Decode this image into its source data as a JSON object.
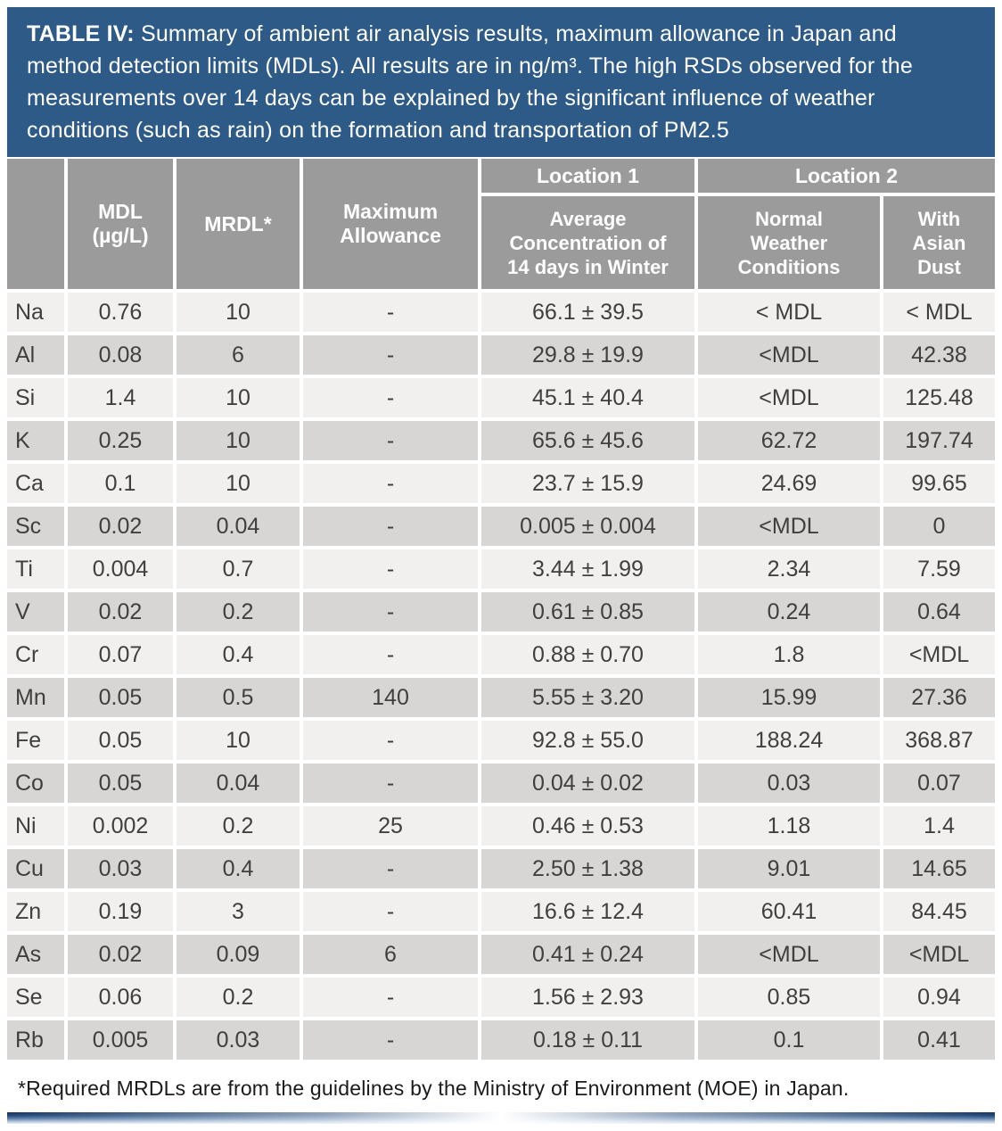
{
  "colors": {
    "title_bg": "#2d5a87",
    "title_text": "#ffffff",
    "header_bg": "#9b9b9b",
    "header_text": "#ffffff",
    "row_light": "#f1f0ee",
    "row_dark": "#d8d6d4",
    "cell_text": "#3f3f3f",
    "footnote_text": "#1a1a1a"
  },
  "title": {
    "label": "TABLE IV:",
    "text": "Summary of ambient air analysis results, maximum allowance in Japan and method detection limits (MDLs). All results are in ng/m³. The high RSDs observed for the measurements over 14 days can be explained by the significant influence of weather conditions (such as rain) on the formation and transportation of PM2.5"
  },
  "table": {
    "headers": {
      "element": "",
      "mdl": "MDL\n(µg/L)",
      "mrdl": "MRDL*",
      "max_allowance": "Maximum\nAllowance",
      "location1": "Location 1",
      "location2": "Location 2",
      "avg_concentration": "Average\nConcentration of\n14 days in Winter",
      "normal_weather": "Normal\nWeather\nConditions",
      "asian_dust": "With\nAsian\nDust"
    },
    "rows": [
      {
        "element": "Na",
        "mdl": "0.76",
        "mrdl": "10",
        "max_allowance": "-",
        "avg_concentration": "66.1 ± 39.5",
        "normal_weather": "< MDL",
        "asian_dust": "< MDL"
      },
      {
        "element": "Al",
        "mdl": "0.08",
        "mrdl": "6",
        "max_allowance": "-",
        "avg_concentration": "29.8 ± 19.9",
        "normal_weather": "<MDL",
        "asian_dust": "42.38"
      },
      {
        "element": "Si",
        "mdl": "1.4",
        "mrdl": "10",
        "max_allowance": "-",
        "avg_concentration": "45.1 ± 40.4",
        "normal_weather": "<MDL",
        "asian_dust": "125.48"
      },
      {
        "element": "K",
        "mdl": "0.25",
        "mrdl": "10",
        "max_allowance": "-",
        "avg_concentration": "65.6 ± 45.6",
        "normal_weather": "62.72",
        "asian_dust": "197.74"
      },
      {
        "element": "Ca",
        "mdl": "0.1",
        "mrdl": "10",
        "max_allowance": "-",
        "avg_concentration": "23.7 ± 15.9",
        "normal_weather": "24.69",
        "asian_dust": "99.65"
      },
      {
        "element": "Sc",
        "mdl": "0.02",
        "mrdl": "0.04",
        "max_allowance": "-",
        "avg_concentration": "0.005 ± 0.004",
        "normal_weather": "<MDL",
        "asian_dust": "0"
      },
      {
        "element": "Ti",
        "mdl": "0.004",
        "mrdl": "0.7",
        "max_allowance": "-",
        "avg_concentration": "3.44 ± 1.99",
        "normal_weather": "2.34",
        "asian_dust": "7.59"
      },
      {
        "element": "V",
        "mdl": "0.02",
        "mrdl": "0.2",
        "max_allowance": "-",
        "avg_concentration": "0.61 ± 0.85",
        "normal_weather": "0.24",
        "asian_dust": "0.64"
      },
      {
        "element": "Cr",
        "mdl": "0.07",
        "mrdl": "0.4",
        "max_allowance": "-",
        "avg_concentration": "0.88 ± 0.70",
        "normal_weather": "1.8",
        "asian_dust": "<MDL"
      },
      {
        "element": "Mn",
        "mdl": "0.05",
        "mrdl": "0.5",
        "max_allowance": "140",
        "avg_concentration": "5.55 ± 3.20",
        "normal_weather": "15.99",
        "asian_dust": "27.36"
      },
      {
        "element": "Fe",
        "mdl": "0.05",
        "mrdl": "10",
        "max_allowance": "-",
        "avg_concentration": "92.8 ± 55.0",
        "normal_weather": "188.24",
        "asian_dust": "368.87"
      },
      {
        "element": "Co",
        "mdl": "0.05",
        "mrdl": "0.04",
        "max_allowance": "-",
        "avg_concentration": "0.04 ± 0.02",
        "normal_weather": "0.03",
        "asian_dust": "0.07"
      },
      {
        "element": "Ni",
        "mdl": "0.002",
        "mrdl": "0.2",
        "max_allowance": "25",
        "avg_concentration": "0.46 ± 0.53",
        "normal_weather": "1.18",
        "asian_dust": "1.4"
      },
      {
        "element": "Cu",
        "mdl": "0.03",
        "mrdl": "0.4",
        "max_allowance": "-",
        "avg_concentration": "2.50 ± 1.38",
        "normal_weather": "9.01",
        "asian_dust": "14.65"
      },
      {
        "element": "Zn",
        "mdl": "0.19",
        "mrdl": "3",
        "max_allowance": "-",
        "avg_concentration": "16.6 ± 12.4",
        "normal_weather": "60.41",
        "asian_dust": "84.45"
      },
      {
        "element": "As",
        "mdl": "0.02",
        "mrdl": "0.09",
        "max_allowance": "6",
        "avg_concentration": "0.41 ± 0.24",
        "normal_weather": "<MDL",
        "asian_dust": "<MDL"
      },
      {
        "element": "Se",
        "mdl": "0.06",
        "mrdl": "0.2",
        "max_allowance": "-",
        "avg_concentration": "1.56 ± 2.93",
        "normal_weather": "0.85",
        "asian_dust": "0.94"
      },
      {
        "element": "Rb",
        "mdl": "0.005",
        "mrdl": "0.03",
        "max_allowance": "-",
        "avg_concentration": "0.18 ± 0.11",
        "normal_weather": "0.1",
        "asian_dust": "0.41"
      }
    ]
  },
  "footnote": "*Required MRDLs are from the guidelines by the Ministry of Environment (MOE) in Japan."
}
